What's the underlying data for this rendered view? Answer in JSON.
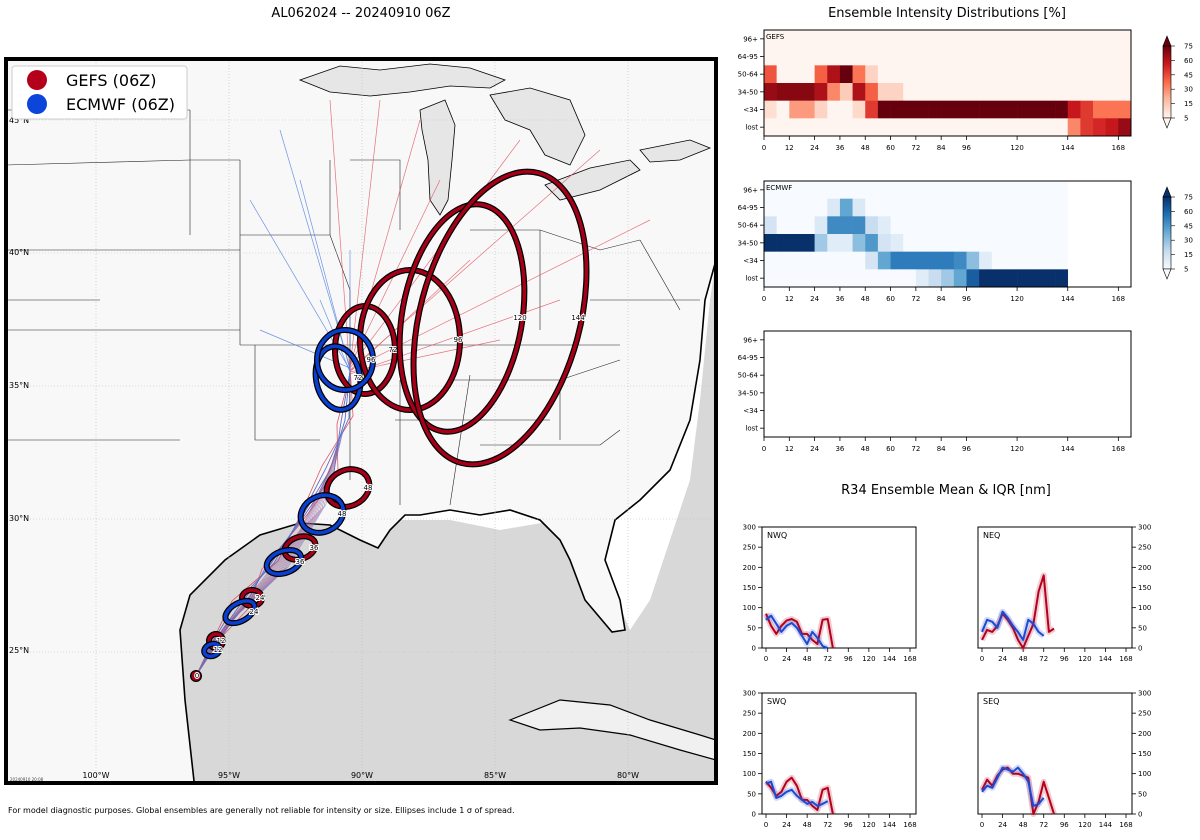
{
  "map": {
    "title": "AL062024 -- 20240910 06Z",
    "legend": [
      {
        "label": "GEFS (06Z)",
        "color": "#b5001c"
      },
      {
        "label": "ECMWF (06Z)",
        "color": "#0b45d9"
      }
    ],
    "lat_labels": [
      "45°N",
      "40°N",
      "35°N",
      "30°N",
      "25°N"
    ],
    "lon_labels": [
      "100°W",
      "95°W",
      "90°W",
      "85°W",
      "80°W"
    ],
    "stamp": "20240910 20:08",
    "gefs_hours": [
      "0",
      "12",
      "24",
      "36",
      "48",
      "72",
      "96",
      "120",
      "144"
    ],
    "ecmwf_hours": [
      "12",
      "24",
      "36",
      "48",
      "72",
      "96"
    ],
    "colors": {
      "gefs_ring": "#a40018",
      "ecmwf_ring": "#0a3fcf",
      "gefs_track": "#e0505c",
      "ecmwf_track": "#4a7ae0",
      "land": "#f8f8f8",
      "lakes": "#e6e6e6"
    }
  },
  "intensity": {
    "title": "Ensemble Intensity Distributions [%]",
    "rows": [
      "96+",
      "64-95",
      "50-64",
      "34-50",
      "<34",
      "lost"
    ],
    "x_ticks": [
      0,
      12,
      24,
      36,
      48,
      60,
      72,
      84,
      96,
      120,
      144,
      168
    ],
    "colorbar_ticks": [
      75,
      60,
      45,
      30,
      15,
      5
    ],
    "panels": [
      {
        "label": "GEFS",
        "cmap": "reds",
        "lead_hours": [
          0,
          6,
          12,
          18,
          24,
          30,
          36,
          42,
          48,
          54,
          60,
          66,
          72,
          78,
          84,
          90,
          96,
          102,
          108,
          114,
          120,
          126,
          132,
          138,
          144,
          150,
          156,
          162,
          168
        ],
        "values": [
          [
            0,
            0,
            0,
            0,
            0,
            0,
            0,
            0,
            0,
            0,
            0,
            0,
            0,
            0,
            0,
            0,
            0,
            0,
            0,
            0,
            0,
            0,
            0,
            0,
            0,
            0,
            0,
            0,
            0
          ],
          [
            0,
            0,
            0,
            0,
            0,
            0,
            0,
            0,
            0,
            0,
            0,
            0,
            0,
            0,
            0,
            0,
            0,
            0,
            0,
            0,
            0,
            0,
            0,
            0,
            0,
            0,
            0,
            0,
            0
          ],
          [
            48,
            0,
            0,
            0,
            45,
            70,
            90,
            40,
            12,
            0,
            0,
            0,
            0,
            0,
            0,
            0,
            0,
            0,
            0,
            0,
            0,
            0,
            0,
            0,
            0,
            0,
            0,
            0,
            0
          ],
          [
            75,
            78,
            78,
            78,
            70,
            35,
            15,
            70,
            45,
            12,
            12,
            0,
            0,
            0,
            0,
            0,
            0,
            0,
            0,
            0,
            0,
            0,
            0,
            0,
            0,
            0,
            0,
            0,
            0
          ],
          [
            8,
            0,
            30,
            30,
            12,
            0,
            0,
            10,
            55,
            85,
            85,
            85,
            85,
            85,
            85,
            85,
            85,
            85,
            85,
            85,
            85,
            85,
            85,
            85,
            65,
            55,
            40,
            40,
            40
          ],
          [
            0,
            0,
            0,
            0,
            0,
            0,
            0,
            0,
            0,
            0,
            0,
            0,
            0,
            0,
            0,
            0,
            0,
            0,
            0,
            0,
            0,
            0,
            0,
            0,
            35,
            55,
            60,
            65,
            75
          ]
        ]
      },
      {
        "label": "ECMWF",
        "cmap": "blues",
        "lead_hours": [
          0,
          6,
          12,
          18,
          24,
          30,
          36,
          42,
          48,
          54,
          60,
          66,
          72,
          78,
          84,
          90,
          96,
          102,
          108,
          114,
          120,
          126,
          132,
          138,
          144,
          150,
          156,
          162,
          168
        ],
        "values": [
          [
            0,
            0,
            0,
            0,
            0,
            0,
            0,
            0,
            0,
            0,
            0,
            0,
            0,
            0,
            0,
            0,
            0,
            0,
            0,
            0,
            0,
            0,
            0,
            0,
            null,
            null,
            null,
            null,
            null
          ],
          [
            0,
            0,
            0,
            0,
            0,
            12,
            45,
            12,
            0,
            0,
            0,
            0,
            0,
            0,
            0,
            0,
            0,
            0,
            0,
            0,
            0,
            0,
            0,
            0,
            null,
            null,
            null,
            null,
            null
          ],
          [
            15,
            0,
            0,
            0,
            12,
            55,
            55,
            55,
            20,
            10,
            0,
            0,
            0,
            0,
            0,
            0,
            0,
            0,
            0,
            0,
            0,
            0,
            0,
            0,
            null,
            null,
            null,
            null,
            null
          ],
          [
            85,
            85,
            85,
            85,
            30,
            10,
            10,
            35,
            50,
            15,
            10,
            0,
            0,
            0,
            0,
            0,
            0,
            0,
            0,
            0,
            0,
            0,
            0,
            0,
            null,
            null,
            null,
            null,
            null
          ],
          [
            0,
            0,
            0,
            0,
            0,
            0,
            0,
            0,
            15,
            45,
            60,
            60,
            60,
            60,
            60,
            55,
            35,
            10,
            0,
            0,
            0,
            0,
            0,
            0,
            null,
            null,
            null,
            null,
            null
          ],
          [
            0,
            0,
            0,
            0,
            0,
            0,
            0,
            0,
            0,
            0,
            0,
            0,
            10,
            20,
            30,
            45,
            70,
            85,
            85,
            85,
            85,
            85,
            85,
            85,
            null,
            null,
            null,
            null,
            null
          ]
        ]
      },
      {
        "label": "",
        "cmap": "none",
        "lead_hours": [],
        "values": []
      }
    ]
  },
  "r34": {
    "title": "R34 Ensemble Mean & IQR [nm]",
    "y_ticks": [
      0,
      50,
      100,
      150,
      200,
      250,
      300
    ],
    "x_ticks": [
      0,
      24,
      48,
      72,
      96,
      120,
      144,
      168
    ],
    "panels": [
      {
        "label": "NWQ",
        "gefs_mean": {
          "x": [
            0,
            6,
            12,
            18,
            24,
            30,
            36,
            42,
            48,
            54,
            60,
            66,
            72,
            78
          ],
          "y": [
            85,
            55,
            35,
            55,
            68,
            72,
            65,
            35,
            35,
            20,
            10,
            70,
            72,
            0
          ]
        },
        "ecmwf_mean": {
          "x": [
            0,
            6,
            12,
            18,
            24,
            30,
            36,
            42,
            48,
            54,
            60,
            66,
            72
          ],
          "y": [
            70,
            80,
            60,
            40,
            55,
            62,
            50,
            30,
            10,
            40,
            25,
            5,
            0
          ]
        }
      },
      {
        "label": "NEQ",
        "gefs_mean": {
          "x": [
            0,
            6,
            12,
            18,
            24,
            30,
            36,
            42,
            48,
            54,
            60,
            66,
            72,
            78,
            84
          ],
          "y": [
            20,
            45,
            40,
            55,
            85,
            70,
            50,
            20,
            0,
            30,
            60,
            140,
            180,
            40,
            48
          ]
        },
        "ecmwf_mean": {
          "x": [
            0,
            6,
            12,
            18,
            24,
            30,
            36,
            42,
            48,
            54,
            60,
            66,
            72
          ],
          "y": [
            40,
            70,
            65,
            50,
            90,
            75,
            55,
            40,
            20,
            70,
            60,
            40,
            30
          ]
        }
      },
      {
        "label": "SWQ",
        "gefs_mean": {
          "x": [
            0,
            6,
            12,
            18,
            24,
            30,
            36,
            42,
            48,
            54,
            60,
            66,
            72,
            78
          ],
          "y": [
            80,
            65,
            45,
            55,
            80,
            90,
            70,
            35,
            35,
            20,
            10,
            60,
            65,
            0
          ]
        },
        "ecmwf_mean": {
          "x": [
            0,
            6,
            12,
            18,
            24,
            30,
            36,
            42,
            48,
            54,
            60,
            66,
            72
          ],
          "y": [
            75,
            80,
            40,
            45,
            55,
            60,
            45,
            35,
            25,
            30,
            20,
            25,
            32
          ]
        }
      },
      {
        "label": "SEQ",
        "gefs_mean": {
          "x": [
            0,
            6,
            12,
            18,
            24,
            30,
            36,
            42,
            48,
            54,
            60,
            66,
            72,
            78,
            84
          ],
          "y": [
            60,
            85,
            70,
            95,
            110,
            115,
            100,
            100,
            95,
            90,
            0,
            30,
            80,
            40,
            0
          ]
        },
        "ecmwf_mean": {
          "x": [
            0,
            6,
            12,
            18,
            24,
            30,
            36,
            42,
            48,
            54,
            60,
            66,
            72
          ],
          "y": [
            55,
            70,
            65,
            90,
            115,
            110,
            105,
            115,
            100,
            80,
            20,
            25,
            40
          ]
        }
      }
    ]
  },
  "footer": "For model diagnostic purposes. Global ensembles are generally not reliable for intensity or size. Ellipses include 1 σ of spread."
}
